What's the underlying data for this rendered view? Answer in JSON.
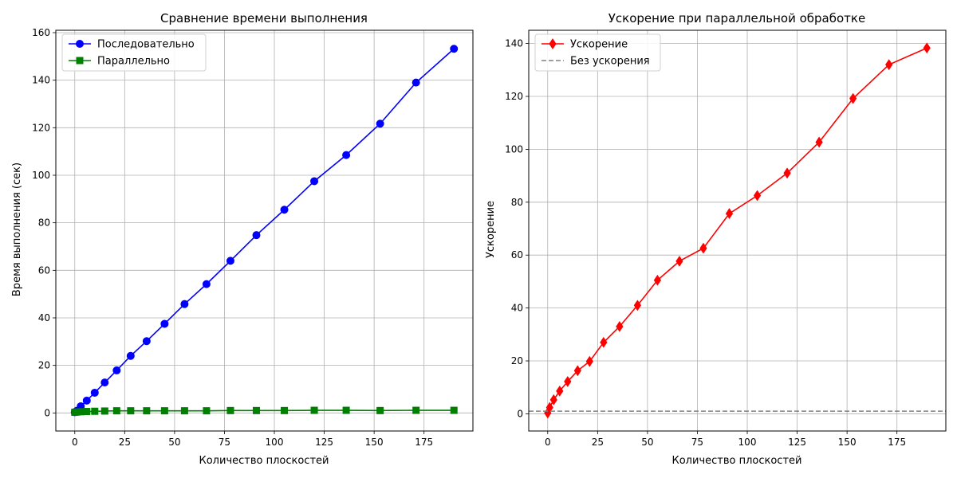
{
  "chart_data": [
    {
      "type": "line",
      "title": "Сравнение времени выполнения",
      "xlabel": "Количество плоскостей",
      "ylabel": "Время выполнения (сек)",
      "xlim": [
        -9.5,
        199.5
      ],
      "ylim": [
        -7.6,
        161
      ],
      "xticks": [
        0,
        25,
        50,
        75,
        100,
        125,
        150,
        175
      ],
      "yticks": [
        0,
        20,
        40,
        60,
        80,
        100,
        120,
        140,
        160
      ],
      "grid": true,
      "legend_position": "top-left",
      "series": [
        {
          "name": "Последовательно",
          "color": "#0000ff",
          "marker": "circle",
          "x": [
            0,
            1,
            3,
            6,
            10,
            15,
            21,
            28,
            36,
            45,
            55,
            66,
            78,
            91,
            105,
            120,
            136,
            153,
            171,
            190
          ],
          "y": [
            0.3,
            0.9,
            2.8,
            5.2,
            8.5,
            12.8,
            17.9,
            24.0,
            30.2,
            37.5,
            45.8,
            54.2,
            64.0,
            74.8,
            85.5,
            97.5,
            108.5,
            121.7,
            139.0,
            153.2
          ]
        },
        {
          "name": "Параллельно",
          "color": "#008000",
          "marker": "square",
          "x": [
            0,
            1,
            3,
            6,
            10,
            15,
            21,
            28,
            36,
            45,
            55,
            66,
            78,
            91,
            105,
            120,
            136,
            153,
            171,
            190
          ],
          "y": [
            0.3,
            0.4,
            0.5,
            0.6,
            0.7,
            0.8,
            0.9,
            0.9,
            0.9,
            0.9,
            0.9,
            0.9,
            1.0,
            1.0,
            1.0,
            1.1,
            1.1,
            1.0,
            1.1,
            1.1
          ]
        }
      ]
    },
    {
      "type": "line",
      "title": "Ускорение при параллельной обработке",
      "xlabel": "Количество плоскостей",
      "ylabel": "Ускорение",
      "xlim": [
        -9.5,
        199.5
      ],
      "ylim": [
        -6.5,
        145
      ],
      "xticks": [
        0,
        25,
        50,
        75,
        100,
        125,
        150,
        175
      ],
      "yticks": [
        0,
        20,
        40,
        60,
        80,
        100,
        120,
        140
      ],
      "grid": true,
      "legend_position": "top-left",
      "series": [
        {
          "name": "Ускорение",
          "color": "#ff0000",
          "marker": "diamond",
          "x": [
            0,
            1,
            3,
            6,
            10,
            15,
            21,
            28,
            36,
            45,
            55,
            66,
            78,
            91,
            105,
            120,
            136,
            153,
            171,
            190
          ],
          "y": [
            0.3,
            2.4,
            5.3,
            8.6,
            12.2,
            16.3,
            19.8,
            27.0,
            33.0,
            41.0,
            50.5,
            57.7,
            62.6,
            75.7,
            82.5,
            91.0,
            102.7,
            119.2,
            132.0,
            138.3
          ]
        },
        {
          "name": "Без ускорения",
          "color": "#808080",
          "style": "dashed",
          "y": [
            1,
            1
          ]
        }
      ]
    }
  ]
}
